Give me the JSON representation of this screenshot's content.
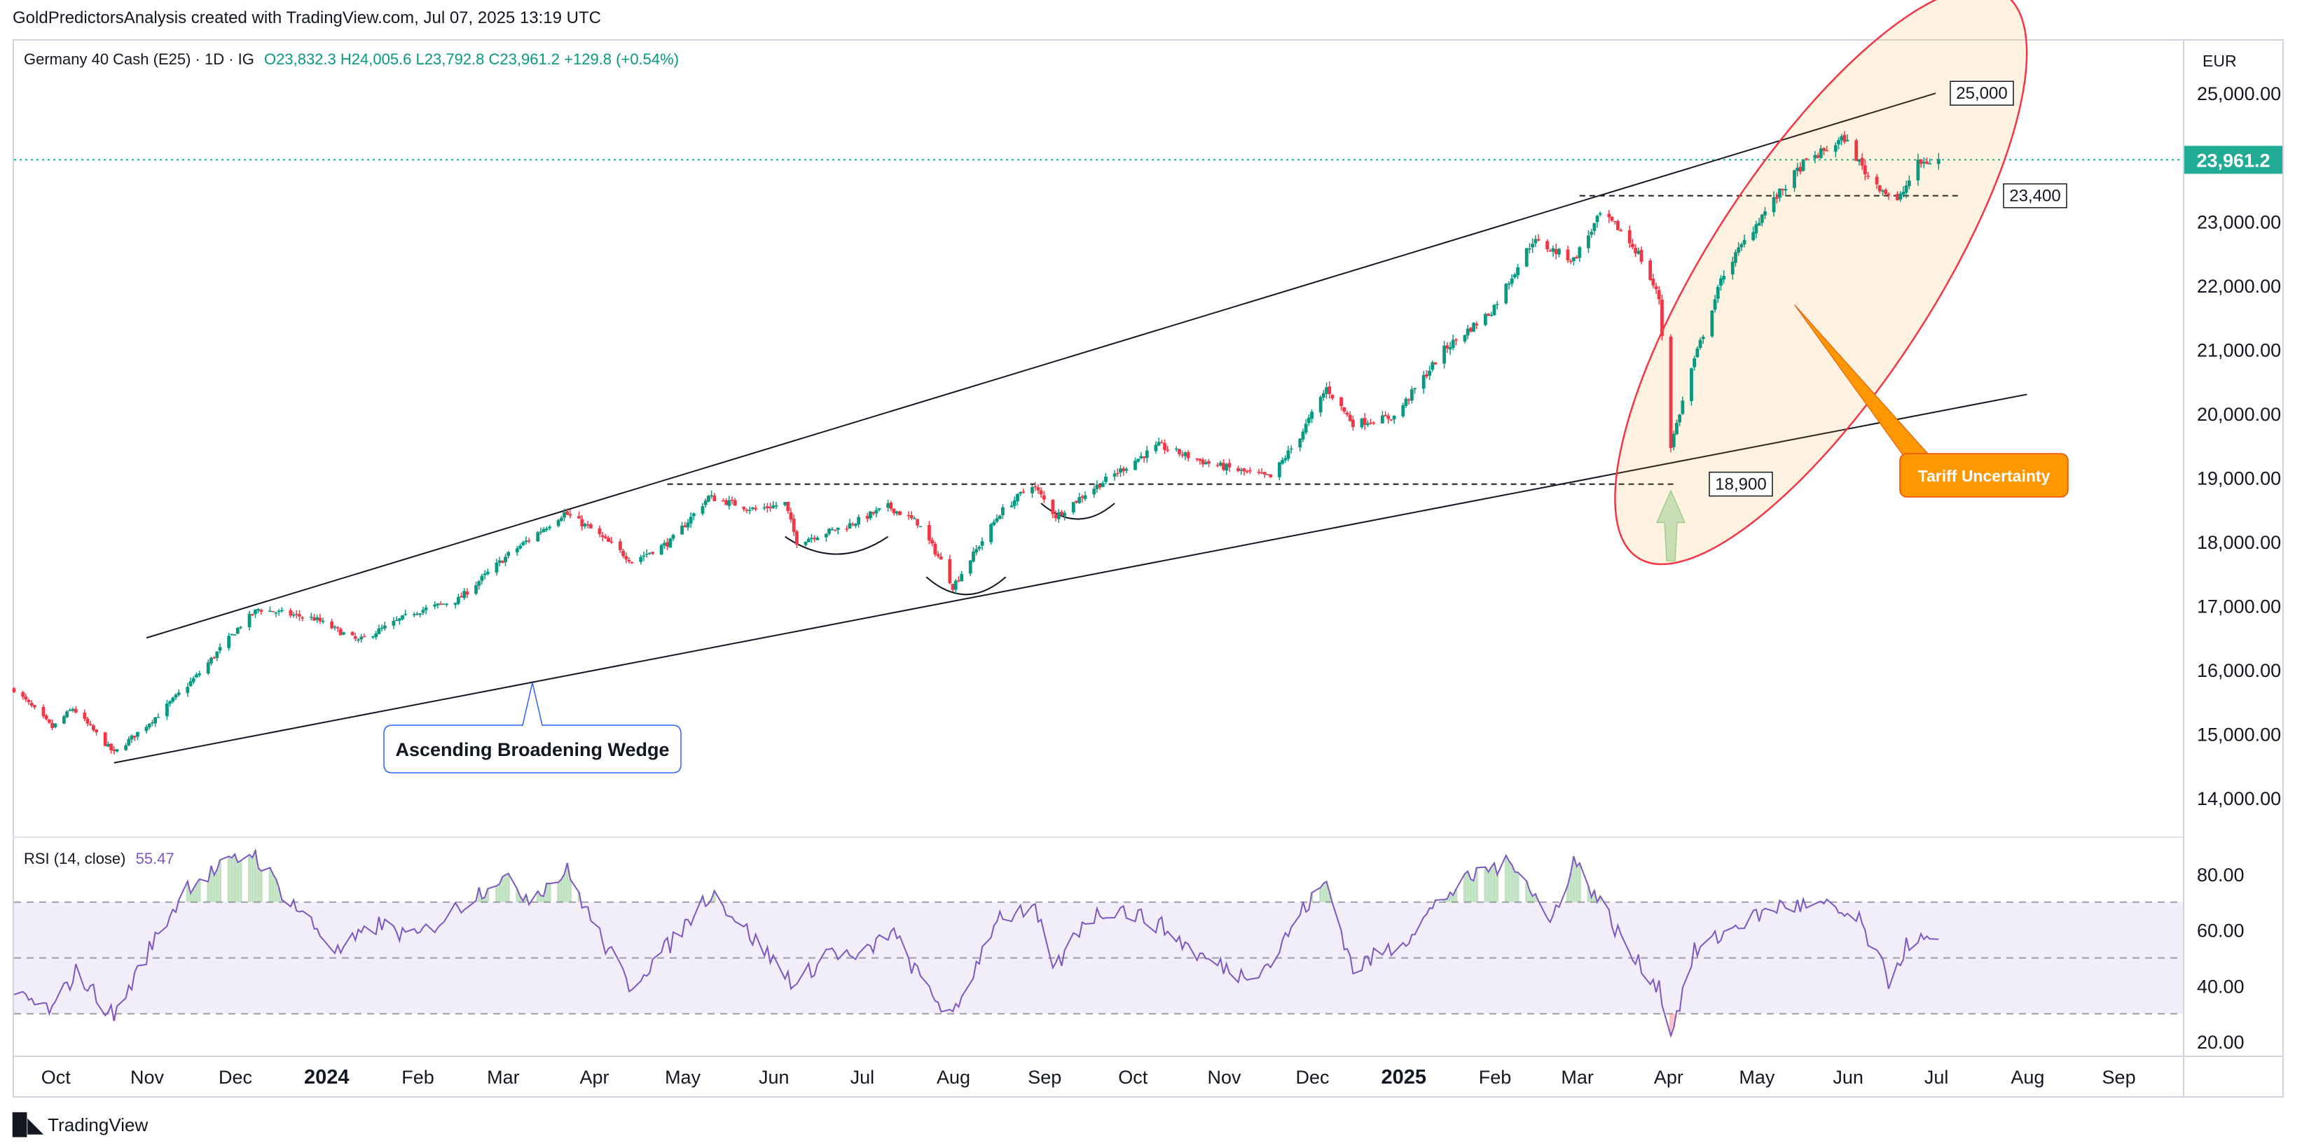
{
  "attribution": "GoldPredictorsAnalysis created with TradingView.com, Jul 07, 2025 13:19 UTC",
  "legend": {
    "symbol": "Germany 40 Cash (E25) · 1D · IG",
    "ohlc": "O23,832.3  H24,005.6  L23,792.8  C23,961.2  +129.8 (+0.54%)"
  },
  "currency": "EUR",
  "logo_text": "TradingView",
  "colors": {
    "up": "#089981",
    "down": "#f23645",
    "rsi": "#7e57c2",
    "price_badge": "#22ab94",
    "annotation": "#ff9800"
  },
  "chart_data": [
    {
      "type": "candlestick",
      "symbol": "Germany 40 Cash (E25)",
      "interval": "1D",
      "price_axis": {
        "ticks": [
          14000,
          15000,
          16000,
          17000,
          18000,
          19000,
          20000,
          21000,
          22000,
          23000,
          25000
        ],
        "range": [
          13400,
          25800
        ],
        "position": "right"
      },
      "time_axis": {
        "ticks": [
          {
            "label": "Oct",
            "date": "2023-10-01"
          },
          {
            "label": "Nov",
            "date": "2023-11-01"
          },
          {
            "label": "Dec",
            "date": "2023-12-01"
          },
          {
            "label": "2024",
            "date": "2024-01-01",
            "bold": true
          },
          {
            "label": "Feb",
            "date": "2024-02-01"
          },
          {
            "label": "Mar",
            "date": "2024-03-01"
          },
          {
            "label": "Apr",
            "date": "2024-04-01"
          },
          {
            "label": "May",
            "date": "2024-05-01"
          },
          {
            "label": "Jun",
            "date": "2024-06-01"
          },
          {
            "label": "Jul",
            "date": "2024-07-01"
          },
          {
            "label": "Aug",
            "date": "2024-08-01"
          },
          {
            "label": "Sep",
            "date": "2024-09-01"
          },
          {
            "label": "Oct",
            "date": "2024-10-01"
          },
          {
            "label": "Nov",
            "date": "2024-11-01"
          },
          {
            "label": "Dec",
            "date": "2024-12-01"
          },
          {
            "label": "2025",
            "date": "2025-01-01",
            "bold": true
          },
          {
            "label": "Feb",
            "date": "2025-02-01"
          },
          {
            "label": "Mar",
            "date": "2025-03-01"
          },
          {
            "label": "Apr",
            "date": "2025-04-01"
          },
          {
            "label": "May",
            "date": "2025-05-01"
          },
          {
            "label": "Jun",
            "date": "2025-06-01"
          },
          {
            "label": "Jul",
            "date": "2025-07-01"
          },
          {
            "label": "Aug",
            "date": "2025-08-01"
          },
          {
            "label": "Sep",
            "date": "2025-09-01"
          }
        ],
        "range": [
          "2023-09-22",
          "2025-09-28"
        ]
      },
      "last_price": {
        "label": "23,961.2",
        "value": 23961.2
      },
      "price_anchors": [
        [
          "2023-09-22",
          15700
        ],
        [
          "2023-10-05",
          15100
        ],
        [
          "2023-10-12",
          15400
        ],
        [
          "2023-10-26",
          14700
        ],
        [
          "2023-11-10",
          15300
        ],
        [
          "2023-11-24",
          15950
        ],
        [
          "2023-12-08",
          16700
        ],
        [
          "2023-12-14",
          16950
        ],
        [
          "2024-01-02",
          16800
        ],
        [
          "2024-01-17",
          16450
        ],
        [
          "2024-02-05",
          16900
        ],
        [
          "2024-02-20",
          17100
        ],
        [
          "2024-03-08",
          17800
        ],
        [
          "2024-03-27",
          18450
        ],
        [
          "2024-04-05",
          18200
        ],
        [
          "2024-04-19",
          17700
        ],
        [
          "2024-05-02",
          18000
        ],
        [
          "2024-05-15",
          18700
        ],
        [
          "2024-05-31",
          18500
        ],
        [
          "2024-06-10",
          18600
        ],
        [
          "2024-06-14",
          18000
        ],
        [
          "2024-07-01",
          18250
        ],
        [
          "2024-07-15",
          18550
        ],
        [
          "2024-07-25",
          18300
        ],
        [
          "2024-08-02",
          17700
        ],
        [
          "2024-08-06",
          17300
        ],
        [
          "2024-08-22",
          18450
        ],
        [
          "2024-09-02",
          18900
        ],
        [
          "2024-09-10",
          18400
        ],
        [
          "2024-09-20",
          18750
        ],
        [
          "2024-10-08",
          19300
        ],
        [
          "2024-10-15",
          19500
        ],
        [
          "2024-10-30",
          19250
        ],
        [
          "2024-11-12",
          19100
        ],
        [
          "2024-11-22",
          19000
        ],
        [
          "2024-12-02",
          19650
        ],
        [
          "2024-12-11",
          20400
        ],
        [
          "2024-12-20",
          19850
        ],
        [
          "2025-01-03",
          19950
        ],
        [
          "2025-01-20",
          21000
        ],
        [
          "2025-02-05",
          21600
        ],
        [
          "2025-02-19",
          22700
        ],
        [
          "2025-03-05",
          22400
        ],
        [
          "2025-03-14",
          23100
        ],
        [
          "2025-03-20",
          22900
        ],
        [
          "2025-03-27",
          22500
        ],
        [
          "2025-04-03",
          21800
        ],
        [
          "2025-04-07",
          19500
        ],
        [
          "2025-04-14",
          20700
        ],
        [
          "2025-04-25",
          22200
        ],
        [
          "2025-05-08",
          23100
        ],
        [
          "2025-05-22",
          23900
        ],
        [
          "2025-06-05",
          24300
        ],
        [
          "2025-06-13",
          23700
        ],
        [
          "2025-06-23",
          23300
        ],
        [
          "2025-06-30",
          23900
        ],
        [
          "2025-07-07",
          23961.2
        ]
      ],
      "annotations": {
        "wedge_label": "Ascending Broadening Wedge",
        "resistance_label": "25,000",
        "resistance_value": 25000,
        "support_label": "18,900",
        "support_value": 18900,
        "level_label": "23,400",
        "level_value": 23400,
        "callout": "Tariff Uncertainty"
      }
    },
    {
      "type": "line",
      "title": "RSI (14, close)",
      "last_value": "55.47",
      "y_axis": {
        "ticks": [
          20,
          40,
          60,
          80
        ],
        "range": [
          15,
          93
        ]
      },
      "bands": {
        "upper": 70,
        "middle": 50,
        "lower": 30
      },
      "rsi_anchors": [
        [
          "2023-09-22",
          37
        ],
        [
          "2023-10-05",
          31
        ],
        [
          "2023-10-13",
          45
        ],
        [
          "2023-10-26",
          29
        ],
        [
          "2023-11-08",
          55
        ],
        [
          "2023-11-20",
          76
        ],
        [
          "2023-12-01",
          82
        ],
        [
          "2023-12-12",
          88
        ],
        [
          "2023-12-22",
          74
        ],
        [
          "2024-01-10",
          52
        ],
        [
          "2024-01-24",
          62
        ],
        [
          "2024-02-05",
          57
        ],
        [
          "2024-02-16",
          65
        ],
        [
          "2024-03-05",
          79
        ],
        [
          "2024-03-15",
          72
        ],
        [
          "2024-03-28",
          81
        ],
        [
          "2024-04-08",
          58
        ],
        [
          "2024-04-18",
          40
        ],
        [
          "2024-05-02",
          55
        ],
        [
          "2024-05-16",
          74
        ],
        [
          "2024-05-31",
          56
        ],
        [
          "2024-06-14",
          40
        ],
        [
          "2024-06-25",
          53
        ],
        [
          "2024-07-05",
          49
        ],
        [
          "2024-07-16",
          60
        ],
        [
          "2024-07-25",
          44
        ],
        [
          "2024-08-06",
          28
        ],
        [
          "2024-08-21",
          65
        ],
        [
          "2024-09-03",
          66
        ],
        [
          "2024-09-10",
          46
        ],
        [
          "2024-09-20",
          64
        ],
        [
          "2024-10-01",
          68
        ],
        [
          "2024-10-15",
          62
        ],
        [
          "2024-10-30",
          50
        ],
        [
          "2024-11-12",
          44
        ],
        [
          "2024-11-22",
          48
        ],
        [
          "2024-12-02",
          66
        ],
        [
          "2024-12-11",
          77
        ],
        [
          "2024-12-20",
          46
        ],
        [
          "2025-01-06",
          56
        ],
        [
          "2025-01-20",
          72
        ],
        [
          "2025-02-03",
          82
        ],
        [
          "2025-02-14",
          84
        ],
        [
          "2025-02-25",
          62
        ],
        [
          "2025-03-05",
          85
        ],
        [
          "2025-03-14",
          70
        ],
        [
          "2025-03-25",
          50
        ],
        [
          "2025-04-03",
          40
        ],
        [
          "2025-04-07",
          23
        ],
        [
          "2025-04-15",
          52
        ],
        [
          "2025-04-30",
          62
        ],
        [
          "2025-05-15",
          69
        ],
        [
          "2025-05-30",
          68
        ],
        [
          "2025-06-10",
          63
        ],
        [
          "2025-06-20",
          42
        ],
        [
          "2025-06-27",
          56
        ],
        [
          "2025-07-07",
          55.47
        ]
      ]
    }
  ]
}
